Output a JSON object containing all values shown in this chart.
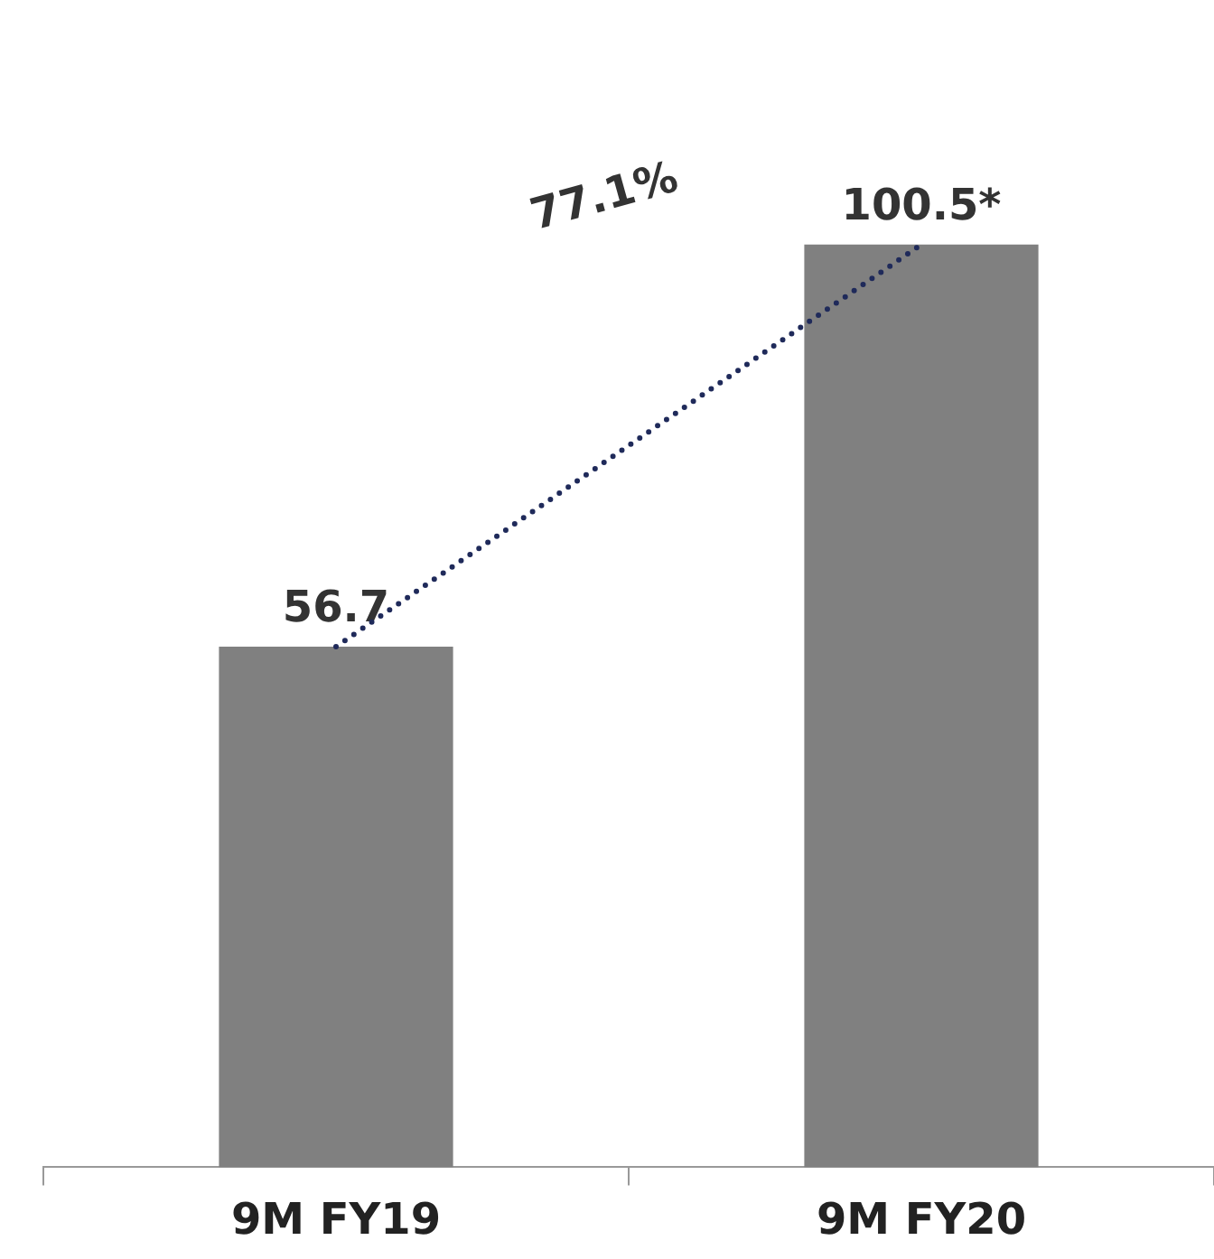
{
  "chart_data": {
    "type": "bar",
    "categories": [
      "9M FY19",
      "9M FY20"
    ],
    "values": [
      56.7,
      100.5
    ],
    "color": "#808080",
    "value_labels": [
      "56.7",
      "100.5*"
    ],
    "annotations": [
      "77.1%"
    ],
    "grid": false,
    "legend": false
  }
}
